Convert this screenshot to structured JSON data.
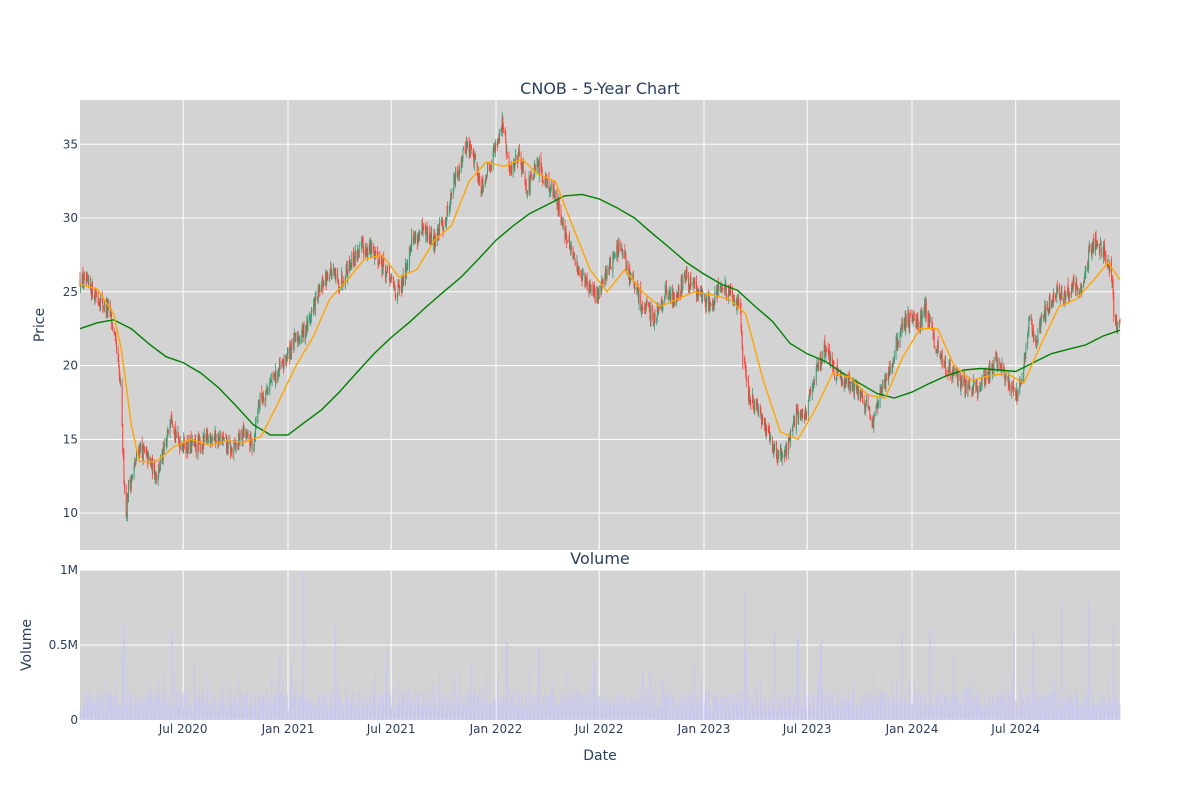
{
  "chart_data": {
    "type": "candlestick",
    "title": "CNOB - 5-Year Chart",
    "price_panel": {
      "ylabel": "Price",
      "ylim": [
        7.5,
        38
      ],
      "yticks": [
        10,
        15,
        20,
        25,
        30,
        35
      ],
      "ytick_labels": [
        "10",
        "15",
        "20",
        "25",
        "30",
        "35"
      ],
      "up_color": "#3d9970",
      "down_color": "#ff4136",
      "background": "#d3d3d3",
      "grid": true,
      "close_anchors": [
        [
          "2020-01-02",
          25.8
        ],
        [
          "2020-01-20",
          25.3
        ],
        [
          "2020-02-10",
          24.2
        ],
        [
          "2020-02-24",
          23.6
        ],
        [
          "2020-03-06",
          21.0
        ],
        [
          "2020-03-13",
          18.5
        ],
        [
          "2020-03-18",
          13.5
        ],
        [
          "2020-03-23",
          9.8
        ],
        [
          "2020-03-27",
          11.8
        ],
        [
          "2020-04-03",
          12.5
        ],
        [
          "2020-04-15",
          14.5
        ],
        [
          "2020-05-01",
          13.6
        ],
        [
          "2020-05-15",
          12.6
        ],
        [
          "2020-06-01",
          14.5
        ],
        [
          "2020-06-10",
          17.0
        ],
        [
          "2020-06-20",
          15.0
        ],
        [
          "2020-07-10",
          14.5
        ],
        [
          "2020-08-01",
          14.6
        ],
        [
          "2020-08-20",
          15.3
        ],
        [
          "2020-09-10",
          14.8
        ],
        [
          "2020-09-25",
          14.2
        ],
        [
          "2020-10-15",
          15.4
        ],
        [
          "2020-11-01",
          14.6
        ],
        [
          "2020-11-10",
          17.5
        ],
        [
          "2020-12-01",
          18.8
        ],
        [
          "2020-12-20",
          19.8
        ],
        [
          "2021-01-10",
          21.5
        ],
        [
          "2021-02-01",
          22.5
        ],
        [
          "2021-02-20",
          24.5
        ],
        [
          "2021-03-15",
          26.5
        ],
        [
          "2021-04-01",
          25.5
        ],
        [
          "2021-04-20",
          27.0
        ],
        [
          "2021-05-10",
          28.0
        ],
        [
          "2021-06-01",
          27.8
        ],
        [
          "2021-06-20",
          26.5
        ],
        [
          "2021-07-10",
          25.0
        ],
        [
          "2021-07-20",
          25.3
        ],
        [
          "2021-08-05",
          28.5
        ],
        [
          "2021-08-25",
          29.0
        ],
        [
          "2021-09-15",
          28.5
        ],
        [
          "2021-10-05",
          30.0
        ],
        [
          "2021-10-20",
          32.5
        ],
        [
          "2021-11-10",
          35.0
        ],
        [
          "2021-11-25",
          34.0
        ],
        [
          "2021-12-05",
          32.0
        ],
        [
          "2021-12-20",
          33.5
        ],
        [
          "2022-01-05",
          35.5
        ],
        [
          "2022-01-12",
          36.5
        ],
        [
          "2022-01-25",
          33.0
        ],
        [
          "2022-02-10",
          34.5
        ],
        [
          "2022-02-25",
          32.0
        ],
        [
          "2022-03-15",
          33.5
        ],
        [
          "2022-04-01",
          32.5
        ],
        [
          "2022-04-20",
          31.0
        ],
        [
          "2022-05-05",
          28.5
        ],
        [
          "2022-05-20",
          27.0
        ],
        [
          "2022-06-10",
          25.5
        ],
        [
          "2022-06-25",
          24.5
        ],
        [
          "2022-07-15",
          26.5
        ],
        [
          "2022-08-05",
          28.0
        ],
        [
          "2022-08-25",
          26.0
        ],
        [
          "2022-09-15",
          24.0
        ],
        [
          "2022-10-05",
          23.3
        ],
        [
          "2022-10-25",
          25.0
        ],
        [
          "2022-11-10",
          24.5
        ],
        [
          "2022-11-30",
          26.0
        ],
        [
          "2022-12-20",
          25.0
        ],
        [
          "2023-01-10",
          24.2
        ],
        [
          "2023-01-30",
          25.5
        ],
        [
          "2023-02-20",
          24.5
        ],
        [
          "2023-03-05",
          24.5
        ],
        [
          "2023-03-10",
          20.5
        ],
        [
          "2023-03-20",
          18.0
        ],
        [
          "2023-04-10",
          16.5
        ],
        [
          "2023-04-25",
          15.5
        ],
        [
          "2023-05-10",
          13.8
        ],
        [
          "2023-05-25",
          14.2
        ],
        [
          "2023-06-10",
          16.5
        ],
        [
          "2023-06-30",
          16.8
        ],
        [
          "2023-07-20",
          20.0
        ],
        [
          "2023-08-01",
          21.2
        ],
        [
          "2023-08-20",
          19.5
        ],
        [
          "2023-09-10",
          19.0
        ],
        [
          "2023-09-30",
          18.0
        ],
        [
          "2023-10-15",
          17.5
        ],
        [
          "2023-10-25",
          16.0
        ],
        [
          "2023-11-10",
          18.5
        ],
        [
          "2023-11-30",
          20.5
        ],
        [
          "2023-12-15",
          23.0
        ],
        [
          "2024-01-05",
          23.2
        ],
        [
          "2024-01-15",
          22.8
        ],
        [
          "2024-01-25",
          24.0
        ],
        [
          "2024-02-10",
          21.5
        ],
        [
          "2024-02-25",
          20.0
        ],
        [
          "2024-03-15",
          19.5
        ],
        [
          "2024-04-05",
          18.5
        ],
        [
          "2024-04-25",
          18.5
        ],
        [
          "2024-05-15",
          19.5
        ],
        [
          "2024-06-01",
          20.5
        ],
        [
          "2024-06-20",
          18.5
        ],
        [
          "2024-07-05",
          18.0
        ],
        [
          "2024-07-15",
          20.0
        ],
        [
          "2024-07-25",
          23.5
        ],
        [
          "2024-08-05",
          21.5
        ],
        [
          "2024-08-20",
          23.5
        ],
        [
          "2024-09-10",
          25.0
        ],
        [
          "2024-09-25",
          24.5
        ],
        [
          "2024-10-10",
          25.5
        ],
        [
          "2024-10-25",
          24.8
        ],
        [
          "2024-11-06",
          27.5
        ],
        [
          "2024-11-20",
          28.5
        ],
        [
          "2024-12-05",
          27.5
        ],
        [
          "2024-12-18",
          26.0
        ],
        [
          "2024-12-20",
          23.0
        ],
        [
          "2024-12-31",
          22.6
        ]
      ],
      "ma_short": {
        "color": "#ffa500",
        "points": [
          [
            "2020-01-02",
            25.5
          ],
          [
            "2020-02-01",
            25.2
          ],
          [
            "2020-03-01",
            23.5
          ],
          [
            "2020-03-15",
            21.0
          ],
          [
            "2020-04-01",
            16.0
          ],
          [
            "2020-04-15",
            13.5
          ],
          [
            "2020-05-15",
            13.5
          ],
          [
            "2020-06-15",
            14.5
          ],
          [
            "2020-07-15",
            15.0
          ],
          [
            "2020-08-15",
            14.6
          ],
          [
            "2020-09-15",
            14.9
          ],
          [
            "2020-10-15",
            14.8
          ],
          [
            "2020-11-15",
            15.2
          ],
          [
            "2020-12-15",
            17.5
          ],
          [
            "2021-01-15",
            20.0
          ],
          [
            "2021-02-15",
            22.0
          ],
          [
            "2021-03-15",
            24.5
          ],
          [
            "2021-04-15",
            25.8
          ],
          [
            "2021-05-15",
            27.2
          ],
          [
            "2021-06-15",
            27.5
          ],
          [
            "2021-07-15",
            26.0
          ],
          [
            "2021-08-15",
            26.5
          ],
          [
            "2021-09-15",
            28.5
          ],
          [
            "2021-10-15",
            29.5
          ],
          [
            "2021-11-15",
            32.5
          ],
          [
            "2021-12-15",
            33.8
          ],
          [
            "2022-01-15",
            33.5
          ],
          [
            "2022-02-15",
            34.0
          ],
          [
            "2022-03-15",
            33.0
          ],
          [
            "2022-04-15",
            32.5
          ],
          [
            "2022-05-15",
            29.5
          ],
          [
            "2022-06-15",
            26.5
          ],
          [
            "2022-07-15",
            25.0
          ],
          [
            "2022-08-15",
            26.5
          ],
          [
            "2022-09-15",
            25.0
          ],
          [
            "2022-10-15",
            24.0
          ],
          [
            "2022-11-15",
            24.5
          ],
          [
            "2022-12-15",
            25.0
          ],
          [
            "2023-01-15",
            24.8
          ],
          [
            "2023-02-15",
            24.5
          ],
          [
            "2023-03-15",
            23.5
          ],
          [
            "2023-04-15",
            19.0
          ],
          [
            "2023-05-15",
            15.5
          ],
          [
            "2023-06-15",
            15.0
          ],
          [
            "2023-07-15",
            17.0
          ],
          [
            "2023-08-15",
            19.5
          ],
          [
            "2023-09-15",
            19.2
          ],
          [
            "2023-10-15",
            18.0
          ],
          [
            "2023-11-15",
            17.8
          ],
          [
            "2023-12-15",
            20.5
          ],
          [
            "2024-01-15",
            22.5
          ],
          [
            "2024-02-15",
            22.5
          ],
          [
            "2024-03-15",
            20.0
          ],
          [
            "2024-04-15",
            19.0
          ],
          [
            "2024-05-15",
            19.3
          ],
          [
            "2024-06-15",
            19.5
          ],
          [
            "2024-07-15",
            18.8
          ],
          [
            "2024-08-15",
            21.5
          ],
          [
            "2024-09-15",
            24.0
          ],
          [
            "2024-10-15",
            24.5
          ],
          [
            "2024-11-15",
            25.8
          ],
          [
            "2024-12-10",
            27.0
          ],
          [
            "2024-12-31",
            25.8
          ]
        ]
      },
      "ma_long": {
        "color": "#008000",
        "points": [
          [
            "2020-01-02",
            22.5
          ],
          [
            "2020-02-01",
            22.9
          ],
          [
            "2020-03-01",
            23.1
          ],
          [
            "2020-04-01",
            22.5
          ],
          [
            "2020-05-01",
            21.5
          ],
          [
            "2020-06-01",
            20.6
          ],
          [
            "2020-07-01",
            20.2
          ],
          [
            "2020-08-01",
            19.5
          ],
          [
            "2020-09-01",
            18.5
          ],
          [
            "2020-10-01",
            17.3
          ],
          [
            "2020-11-01",
            16.0
          ],
          [
            "2020-12-01",
            15.3
          ],
          [
            "2021-01-01",
            15.3
          ],
          [
            "2021-02-01",
            16.2
          ],
          [
            "2021-03-01",
            17.0
          ],
          [
            "2021-04-01",
            18.2
          ],
          [
            "2021-05-01",
            19.5
          ],
          [
            "2021-06-01",
            20.8
          ],
          [
            "2021-07-01",
            21.9
          ],
          [
            "2021-08-01",
            22.9
          ],
          [
            "2021-09-01",
            24.0
          ],
          [
            "2021-10-01",
            25.0
          ],
          [
            "2021-11-01",
            26.0
          ],
          [
            "2021-12-01",
            27.2
          ],
          [
            "2022-01-01",
            28.5
          ],
          [
            "2022-02-01",
            29.5
          ],
          [
            "2022-03-01",
            30.3
          ],
          [
            "2022-04-01",
            30.9
          ],
          [
            "2022-05-01",
            31.5
          ],
          [
            "2022-06-01",
            31.6
          ],
          [
            "2022-07-01",
            31.3
          ],
          [
            "2022-08-01",
            30.7
          ],
          [
            "2022-09-01",
            30.0
          ],
          [
            "2022-10-01",
            29.0
          ],
          [
            "2022-11-01",
            28.0
          ],
          [
            "2022-12-01",
            27.0
          ],
          [
            "2023-01-01",
            26.2
          ],
          [
            "2023-02-01",
            25.5
          ],
          [
            "2023-03-01",
            25.1
          ],
          [
            "2023-04-01",
            24.0
          ],
          [
            "2023-05-01",
            23.0
          ],
          [
            "2023-06-01",
            21.5
          ],
          [
            "2023-07-01",
            20.8
          ],
          [
            "2023-08-01",
            20.3
          ],
          [
            "2023-09-01",
            19.5
          ],
          [
            "2023-10-01",
            18.8
          ],
          [
            "2023-11-01",
            18.1
          ],
          [
            "2023-12-01",
            17.8
          ],
          [
            "2024-01-01",
            18.2
          ],
          [
            "2024-02-01",
            18.8
          ],
          [
            "2024-03-01",
            19.3
          ],
          [
            "2024-04-01",
            19.7
          ],
          [
            "2024-05-01",
            19.8
          ],
          [
            "2024-06-01",
            19.7
          ],
          [
            "2024-07-01",
            19.6
          ],
          [
            "2024-08-01",
            20.2
          ],
          [
            "2024-09-01",
            20.8
          ],
          [
            "2024-10-01",
            21.1
          ],
          [
            "2024-11-01",
            21.4
          ],
          [
            "2024-12-01",
            22.0
          ],
          [
            "2024-12-31",
            22.4
          ]
        ]
      }
    },
    "volume_panel": {
      "title": "Volume",
      "ylabel": "Volume",
      "ylim": [
        0,
        1000000
      ],
      "yticks": [
        0,
        500000,
        1000000
      ],
      "ytick_labels": [
        "0",
        "0.5M",
        "1M"
      ],
      "bar_color": "#c8c8f0",
      "spikes": [
        [
          "2020-03-20",
          650000
        ],
        [
          "2020-03-16",
          450000
        ],
        [
          "2020-06-12",
          600000
        ],
        [
          "2020-07-20",
          380000
        ],
        [
          "2020-12-18",
          420000
        ],
        [
          "2021-01-08",
          380000
        ],
        [
          "2021-01-29",
          980000
        ],
        [
          "2021-03-26",
          650000
        ],
        [
          "2021-06-25",
          470000
        ],
        [
          "2021-11-20",
          380000
        ],
        [
          "2022-01-20",
          520000
        ],
        [
          "2022-03-18",
          480000
        ],
        [
          "2022-06-24",
          400000
        ],
        [
          "2022-09-16",
          330000
        ],
        [
          "2022-12-16",
          380000
        ],
        [
          "2023-03-13",
          850000
        ],
        [
          "2023-03-16",
          450000
        ],
        [
          "2023-05-05",
          590000
        ],
        [
          "2023-06-15",
          560000
        ],
        [
          "2023-07-25",
          510000
        ],
        [
          "2023-12-15",
          600000
        ],
        [
          "2024-02-02",
          620000
        ],
        [
          "2024-03-15",
          450000
        ],
        [
          "2024-06-28",
          600000
        ],
        [
          "2024-08-02",
          610000
        ],
        [
          "2024-09-20",
          780000
        ],
        [
          "2024-11-06",
          780000
        ],
        [
          "2024-12-20",
          630000
        ]
      ]
    },
    "xaxis": {
      "label": "Date",
      "range": [
        "2020-01-02",
        "2024-12-31"
      ],
      "ticks": [
        "2020-07-01",
        "2021-01-01",
        "2021-07-01",
        "2022-01-01",
        "2022-07-01",
        "2023-01-01",
        "2023-07-01",
        "2024-01-01",
        "2024-07-01"
      ],
      "tick_labels": [
        "Jul 2020",
        "Jan 2021",
        "Jul 2021",
        "Jan 2022",
        "Jul 2022",
        "Jan 2023",
        "Jul 2023",
        "Jan 2024",
        "Jul 2024"
      ]
    }
  }
}
